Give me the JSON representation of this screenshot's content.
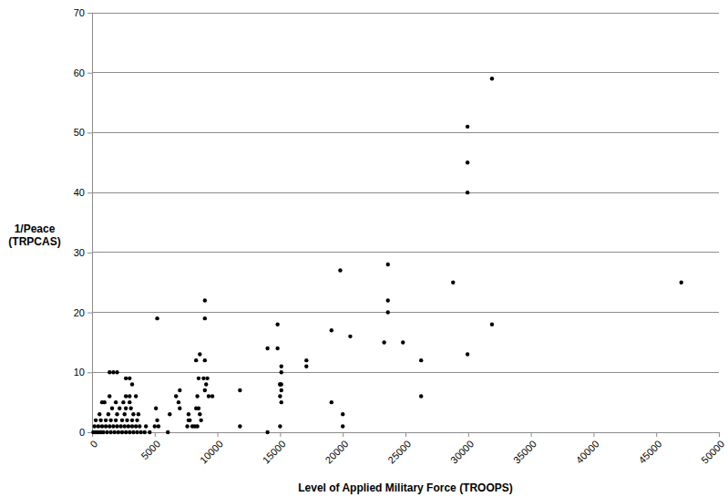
{
  "chart_data": {
    "type": "scatter",
    "x_label": "Level of Applied Military Force (TROOPS)",
    "y_label": "1/Peace\n(TRPCAS)",
    "x": [
      31900,
      29950,
      29950,
      29950,
      23600,
      23600,
      23600,
      19800,
      28800,
      47000,
      31900,
      29950,
      26250,
      26250,
      23300,
      24800,
      20600,
      19100,
      17100,
      17100,
      19100,
      20000,
      20000,
      14800,
      14000,
      14800,
      15100,
      15100,
      15100,
      15000,
      15100,
      15000,
      15100,
      15000,
      15000,
      14000,
      11800,
      11800,
      9000,
      9000,
      9000,
      8900,
      9200,
      9100,
      9000,
      9300,
      9600,
      8300,
      8600,
      8500,
      8400,
      8300,
      8500,
      8600,
      8700,
      8400,
      8200,
      7700,
      7700,
      7800,
      7600,
      8000,
      6700,
      7000,
      6900,
      7000,
      6200,
      6050,
      5200,
      5100,
      5200,
      5000,
      5300,
      1400,
      1700,
      2000,
      2700,
      3000,
      3200,
      1400,
      2700,
      3000,
      3500,
      800,
      1000,
      1900,
      2500,
      3000,
      1600,
      2200,
      2700,
      3100,
      600,
      1300,
      2000,
      2600,
      3300,
      3700,
      300,
      700,
      1100,
      1500,
      1900,
      2400,
      2800,
      3200,
      3600,
      200,
      500,
      800,
      1100,
      1400,
      1700,
      2000,
      2300,
      2600,
      2900,
      3200,
      3500,
      3800,
      4300,
      100,
      300,
      500,
      700,
      900,
      1200,
      1500,
      1800,
      2100,
      2400,
      2700,
      3000,
      3300,
      3600,
      3900,
      4200,
      4600
    ],
    "y": [
      59,
      51,
      45,
      40,
      28,
      22,
      20,
      27,
      25,
      25,
      18,
      13,
      12,
      6,
      15,
      15,
      16,
      17,
      12,
      11,
      5,
      3,
      1,
      18,
      14,
      14,
      10,
      11,
      8,
      8,
      7,
      6,
      5,
      1,
      8,
      0,
      7,
      1,
      22,
      19,
      12,
      9,
      9,
      8,
      7,
      6,
      6,
      12,
      13,
      9,
      6,
      4,
      4,
      3,
      2,
      1,
      1,
      3,
      2,
      2,
      1,
      1,
      6,
      7,
      5,
      4,
      3,
      0,
      19,
      4,
      2,
      1,
      1,
      10,
      10,
      10,
      9,
      9,
      8,
      6,
      6,
      6,
      6,
      5,
      5,
      5,
      5,
      5,
      4,
      4,
      4,
      4,
      3,
      3,
      3,
      3,
      3,
      3,
      2,
      2,
      2,
      2,
      2,
      2,
      2,
      2,
      2,
      1,
      1,
      1,
      1,
      1,
      1,
      1,
      1,
      1,
      1,
      1,
      1,
      1,
      1,
      0,
      0,
      0,
      0,
      0,
      0,
      0,
      0,
      0,
      0,
      0,
      0,
      0,
      0,
      0,
      0,
      0
    ],
    "xlim": [
      0,
      50000
    ],
    "ylim": [
      0,
      70
    ],
    "xticks": [
      0,
      5000,
      10000,
      15000,
      20000,
      25000,
      30000,
      35000,
      40000,
      45000,
      50000
    ],
    "yticks": [
      0,
      10,
      20,
      30,
      40,
      50,
      60,
      70
    ],
    "grid": true,
    "color": "#000000",
    "marker": "circle"
  }
}
